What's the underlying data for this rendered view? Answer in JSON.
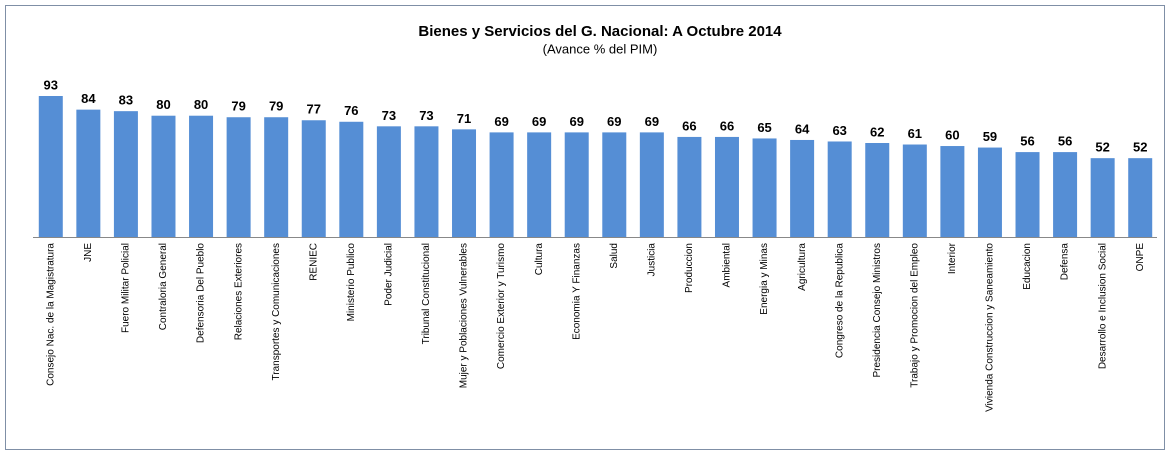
{
  "chart_data": {
    "type": "bar",
    "title": "Bienes y Servicios del G. Nacional: A Octubre 2014",
    "subtitle": "(Avance % del PIM)",
    "color": "#558ed5",
    "categories": [
      "Consejo Nac. de la Magistratura",
      "JNE",
      "Fuero Militar Policial",
      "Contraloria General",
      "Defensoria Del Pueblo",
      "Relaciones Exteriores",
      "Transportes y Comunicaciones",
      "RENIEC",
      "Ministerio Publico",
      "Poder Judicial",
      "Tribunal Constitucional",
      "Mujer y Poblaciones Vulnerables",
      "Comercio Exterior y Turismo",
      "Cultura",
      "Economia Y Finanzas",
      "Salud",
      "Justicia",
      "Produccion",
      "Ambiental",
      "Energia y Minas",
      "Agricultura",
      "Congreso de la Republica",
      "Presidencia Consejo Ministros",
      "Trabajo y Promocion del Empleo",
      "Interior",
      "Vivienda Construccion y Saneamiento",
      "Educacion",
      "Defensa",
      "Desarrollo e Inclusion Social",
      "ONPE"
    ],
    "values": [
      93,
      84,
      83,
      80,
      80,
      79,
      79,
      77,
      76,
      73,
      73,
      71,
      69,
      69,
      69,
      69,
      69,
      66,
      66,
      65,
      64,
      63,
      62,
      61,
      60,
      59,
      56,
      56,
      52,
      52
    ]
  }
}
